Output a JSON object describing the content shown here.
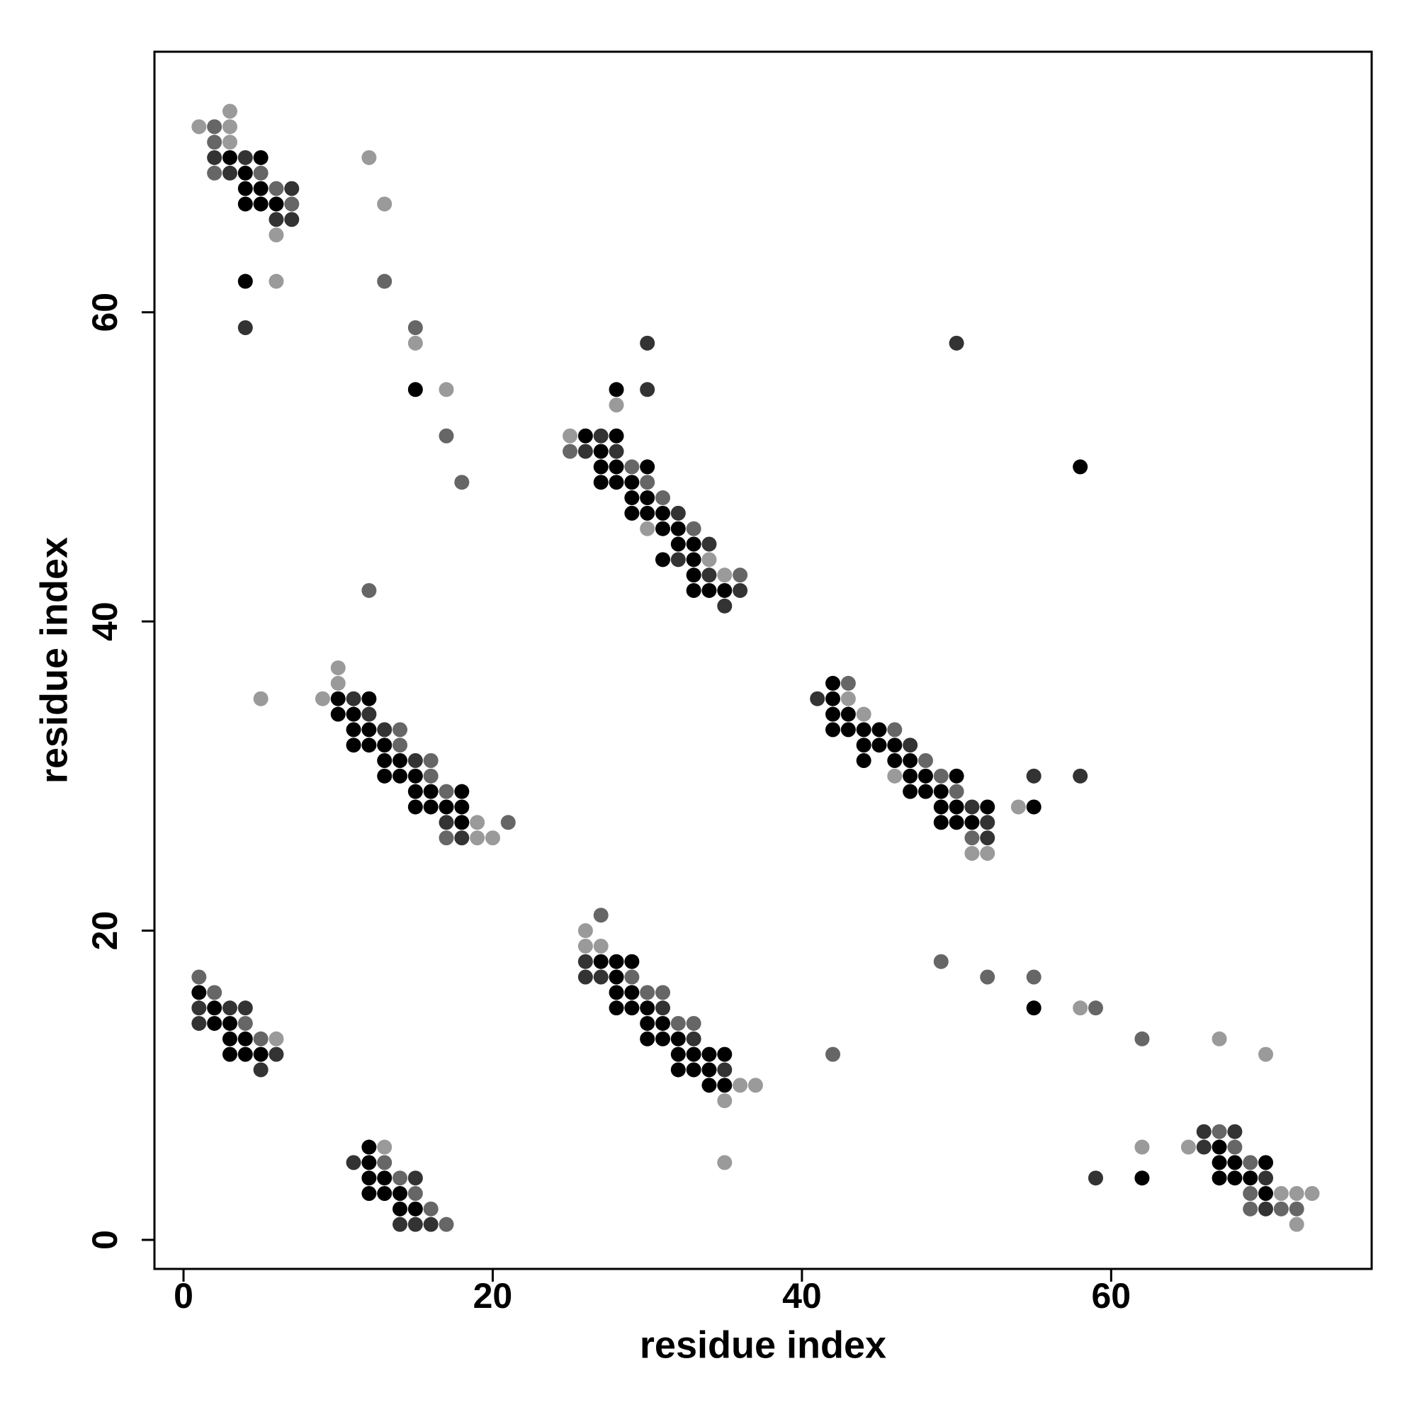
{
  "chart_data": {
    "type": "scatter",
    "x_label": "residue index",
    "y_label": "residue index",
    "xlim": [
      -1.88,
      76.85
    ],
    "ylim": [
      -1.88,
      76.85
    ],
    "xticks": [
      0,
      20,
      40,
      60
    ],
    "yticks": [
      0,
      20,
      40,
      60
    ],
    "grid": false,
    "series": [
      {
        "color": "#000000",
        "x": [
          3,
          5,
          4,
          4,
          5,
          4,
          5,
          6,
          4,
          15,
          10,
          12,
          10,
          11,
          11,
          12,
          11,
          12,
          13,
          13,
          14,
          13,
          14,
          15,
          15,
          16,
          18,
          15,
          16,
          17,
          18,
          18,
          1,
          2,
          2,
          3,
          3,
          4,
          3,
          4,
          5,
          12,
          12,
          12,
          13,
          12,
          13,
          14,
          14,
          15,
          28,
          26,
          28,
          27,
          27,
          28,
          30,
          27,
          28,
          29,
          29,
          30,
          29,
          30,
          31,
          31,
          32,
          32,
          33,
          31,
          33,
          33,
          33,
          34,
          35,
          27,
          28,
          29,
          28,
          28,
          29,
          28,
          29,
          30,
          30,
          31,
          30,
          31,
          32,
          32,
          33,
          34,
          35,
          32,
          33,
          34,
          34,
          35,
          42,
          42,
          42,
          43,
          42,
          43,
          44,
          45,
          44,
          45,
          46,
          44,
          46,
          47,
          47,
          48,
          50,
          47,
          48,
          49,
          49,
          50,
          52,
          49,
          50,
          51,
          55,
          58,
          55,
          62,
          67,
          67,
          68,
          70,
          67,
          68,
          69,
          70
        ],
        "y": [
          70,
          70,
          69,
          68,
          68,
          67,
          67,
          67,
          62,
          55,
          35,
          35,
          34,
          34,
          33,
          33,
          32,
          32,
          32,
          31,
          31,
          30,
          30,
          30,
          29,
          29,
          29,
          28,
          28,
          28,
          28,
          27,
          16,
          15,
          14,
          14,
          13,
          13,
          12,
          12,
          12,
          6,
          5,
          4,
          4,
          3,
          3,
          3,
          2,
          2,
          55,
          52,
          52,
          51,
          50,
          50,
          50,
          49,
          49,
          49,
          48,
          48,
          47,
          47,
          47,
          46,
          46,
          45,
          45,
          44,
          44,
          43,
          42,
          42,
          42,
          18,
          18,
          18,
          17,
          16,
          16,
          15,
          15,
          15,
          14,
          14,
          13,
          13,
          13,
          12,
          12,
          12,
          12,
          11,
          11,
          11,
          10,
          10,
          36,
          35,
          34,
          34,
          33,
          33,
          33,
          33,
          32,
          32,
          32,
          31,
          31,
          31,
          30,
          30,
          30,
          29,
          29,
          29,
          28,
          28,
          28,
          27,
          27,
          27,
          28,
          50,
          15,
          4,
          6,
          5,
          5,
          5,
          4,
          4,
          4,
          3
        ]
      },
      {
        "color": "#333333",
        "x": [
          2,
          4,
          3,
          7,
          6,
          7,
          4,
          11,
          12,
          13,
          15,
          17,
          18,
          1,
          3,
          4,
          1,
          6,
          5,
          11,
          15,
          14,
          15,
          16,
          30,
          30,
          27,
          26,
          28,
          32,
          34,
          32,
          34,
          36,
          35,
          26,
          26,
          27,
          31,
          33,
          35,
          41,
          47,
          51,
          52,
          52,
          55,
          58,
          50,
          59,
          66,
          68,
          66,
          70,
          70
        ],
        "y": [
          70,
          70,
          69,
          68,
          66,
          66,
          59,
          35,
          34,
          33,
          31,
          27,
          26,
          15,
          15,
          15,
          14,
          12,
          11,
          5,
          4,
          1,
          1,
          1,
          55,
          58,
          52,
          51,
          51,
          47,
          45,
          44,
          43,
          42,
          41,
          18,
          17,
          17,
          15,
          13,
          11,
          35,
          32,
          28,
          27,
          26,
          30,
          30,
          58,
          4,
          7,
          7,
          6,
          4,
          2
        ]
      },
      {
        "color": "#666666",
        "x": [
          2,
          2,
          2,
          5,
          6,
          7,
          13,
          15,
          17,
          18,
          12,
          14,
          14,
          16,
          16,
          17,
          21,
          17,
          1,
          2,
          4,
          5,
          13,
          14,
          15,
          16,
          17,
          25,
          29,
          30,
          31,
          33,
          36,
          27,
          29,
          30,
          31,
          32,
          33,
          43,
          46,
          48,
          49,
          50,
          51,
          49,
          52,
          55,
          59,
          62,
          42,
          67,
          68,
          69,
          69,
          69,
          71,
          72
        ],
        "y": [
          72,
          71,
          69,
          69,
          68,
          67,
          62,
          59,
          52,
          49,
          42,
          33,
          32,
          31,
          30,
          29,
          27,
          26,
          17,
          16,
          14,
          13,
          5,
          4,
          3,
          2,
          1,
          51,
          50,
          49,
          48,
          46,
          43,
          21,
          17,
          16,
          16,
          14,
          14,
          36,
          33,
          31,
          30,
          29,
          26,
          18,
          17,
          17,
          15,
          13,
          12,
          7,
          6,
          5,
          3,
          2,
          2,
          2
        ]
      },
      {
        "color": "#9a9a9a",
        "x": [
          3,
          1,
          3,
          3,
          6,
          6,
          12,
          13,
          15,
          17,
          5,
          10,
          10,
          9,
          19,
          19,
          20,
          6,
          13,
          28,
          25,
          30,
          34,
          35,
          26,
          26,
          27,
          36,
          37,
          35,
          35,
          43,
          44,
          46,
          51,
          52,
          54,
          58,
          67,
          70,
          62,
          65,
          71,
          72,
          73,
          72
        ],
        "y": [
          73,
          72,
          72,
          71,
          65,
          62,
          70,
          67,
          58,
          55,
          35,
          37,
          36,
          35,
          27,
          26,
          26,
          13,
          6,
          54,
          52,
          46,
          44,
          43,
          20,
          19,
          19,
          10,
          10,
          9,
          5,
          35,
          34,
          30,
          25,
          25,
          28,
          15,
          13,
          12,
          6,
          6,
          3,
          3,
          3,
          1
        ]
      }
    ]
  }
}
